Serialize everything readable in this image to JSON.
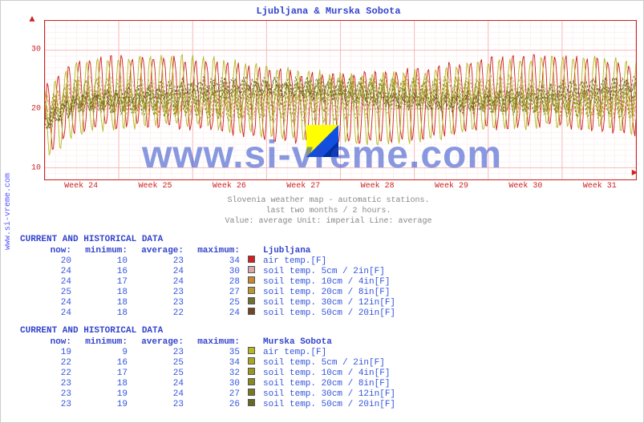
{
  "title": "Ljubljana & Murska Sobota",
  "site_label": "www.si-vreme.com",
  "watermark": "www.si-vreme.com",
  "chart": {
    "type": "line",
    "ylim": [
      8,
      35
    ],
    "yticks": [
      10,
      20,
      30
    ],
    "xticks": [
      "Week 24",
      "Week 25",
      "Week 26",
      "Week 27",
      "Week 28",
      "Week 29",
      "Week 30",
      "Week 31"
    ],
    "grid_minor": "#fde6e6",
    "grid_major": "#f5baba",
    "axis_color": "#cc2222",
    "bg": "#ffffff",
    "series_colors": [
      "#d02020",
      "#d8a8a8",
      "#c88830",
      "#b89830",
      "#707030",
      "#704820",
      "#b8b820",
      "#a8a820",
      "#989820",
      "#888820",
      "#787820",
      "#686820"
    ],
    "n_points": 560,
    "baseline": 22,
    "amp_low": 2.5,
    "amp_high": 6,
    "periods": 56
  },
  "description": {
    "l1": "Slovenia weather map - automatic stations.",
    "l2": "last two months / 2 hours.",
    "l3": "Value: average  Unit: imperial  Line: average"
  },
  "blocks": [
    {
      "header": "CURRENT AND HISTORICAL DATA",
      "station": "Ljubljana",
      "cols": [
        "now:",
        "minimum:",
        "average:",
        "maximum:"
      ],
      "rows": [
        {
          "v": [
            20,
            10,
            23,
            34
          ],
          "c": "#d02020",
          "l": "air temp.[F]"
        },
        {
          "v": [
            24,
            16,
            24,
            30
          ],
          "c": "#d8a8a8",
          "l": "soil temp. 5cm / 2in[F]"
        },
        {
          "v": [
            24,
            17,
            24,
            28
          ],
          "c": "#c88830",
          "l": "soil temp. 10cm / 4in[F]"
        },
        {
          "v": [
            25,
            18,
            23,
            27
          ],
          "c": "#b89830",
          "l": "soil temp. 20cm / 8in[F]"
        },
        {
          "v": [
            24,
            18,
            23,
            25
          ],
          "c": "#707030",
          "l": "soil temp. 30cm / 12in[F]"
        },
        {
          "v": [
            24,
            18,
            22,
            24
          ],
          "c": "#704820",
          "l": "soil temp. 50cm / 20in[F]"
        }
      ]
    },
    {
      "header": "CURRENT AND HISTORICAL DATA",
      "station": "Murska Sobota",
      "cols": [
        "now:",
        "minimum:",
        "average:",
        "maximum:"
      ],
      "rows": [
        {
          "v": [
            19,
            9,
            23,
            35
          ],
          "c": "#b8b820",
          "l": "air temp.[F]"
        },
        {
          "v": [
            22,
            16,
            25,
            34
          ],
          "c": "#a8a820",
          "l": "soil temp. 5cm / 2in[F]"
        },
        {
          "v": [
            22,
            17,
            25,
            32
          ],
          "c": "#989820",
          "l": "soil temp. 10cm / 4in[F]"
        },
        {
          "v": [
            23,
            18,
            24,
            30
          ],
          "c": "#888820",
          "l": "soil temp. 20cm / 8in[F]"
        },
        {
          "v": [
            23,
            19,
            24,
            27
          ],
          "c": "#787820",
          "l": "soil temp. 30cm / 12in[F]"
        },
        {
          "v": [
            23,
            19,
            23,
            26
          ],
          "c": "#686820",
          "l": "soil temp. 50cm / 20in[F]"
        }
      ]
    }
  ]
}
